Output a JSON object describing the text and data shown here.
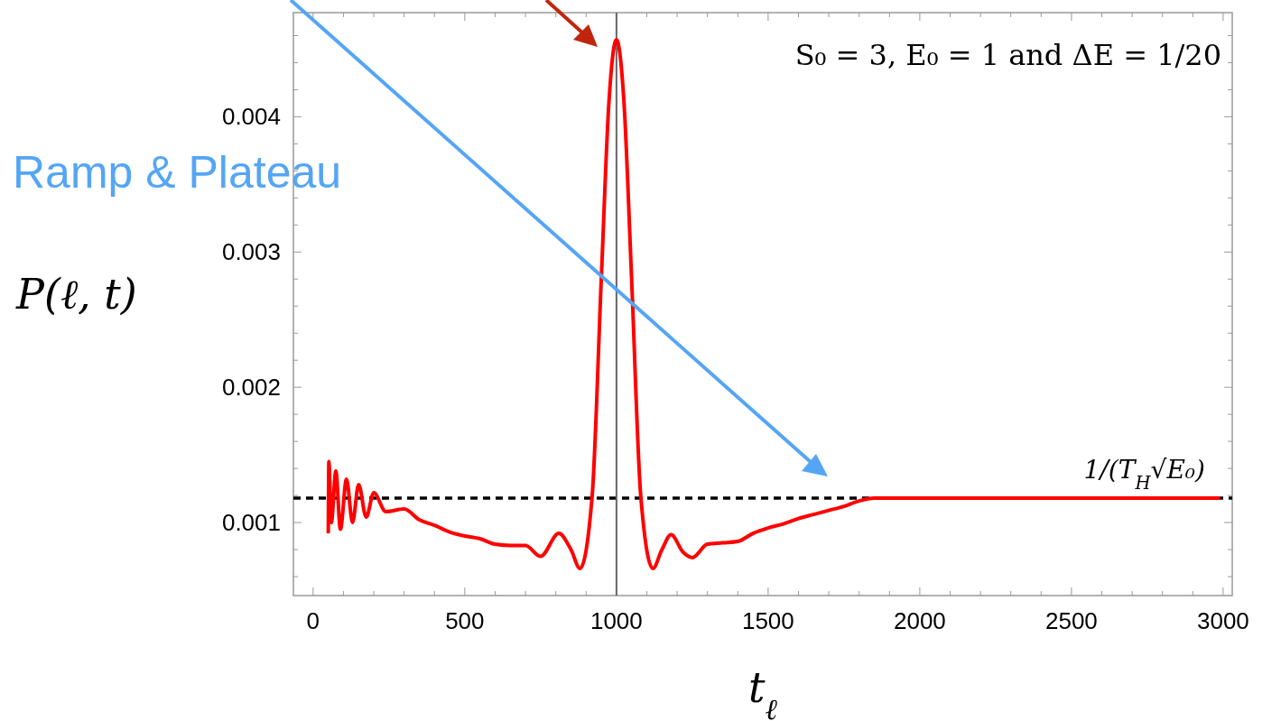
{
  "chart_data": {
    "type": "line",
    "xlabel": "t$_{ℓ}$",
    "ylabel": "P(ℓ, t)",
    "xlim": [
      -65,
      3030
    ],
    "ylim": [
      0.00046,
      0.00477
    ],
    "xticks": [
      {
        "value": 0,
        "label": "0"
      },
      {
        "value": 100,
        "label": null
      },
      {
        "value": 200,
        "label": null
      },
      {
        "value": 300,
        "label": null
      },
      {
        "value": 400,
        "label": null
      },
      {
        "value": 500,
        "label": "500"
      },
      {
        "value": 600,
        "label": null
      },
      {
        "value": 700,
        "label": null
      },
      {
        "value": 800,
        "label": null
      },
      {
        "value": 900,
        "label": null
      },
      {
        "value": 1000,
        "label": "1000"
      },
      {
        "value": 1100,
        "label": null
      },
      {
        "value": 1200,
        "label": null
      },
      {
        "value": 1300,
        "label": null
      },
      {
        "value": 1400,
        "label": null
      },
      {
        "value": 1500,
        "label": "1500"
      },
      {
        "value": 1600,
        "label": null
      },
      {
        "value": 1700,
        "label": null
      },
      {
        "value": 1800,
        "label": null
      },
      {
        "value": 1900,
        "label": null
      },
      {
        "value": 2000,
        "label": "2000"
      },
      {
        "value": 2100,
        "label": null
      },
      {
        "value": 2200,
        "label": null
      },
      {
        "value": 2300,
        "label": null
      },
      {
        "value": 2400,
        "label": null
      },
      {
        "value": 2500,
        "label": "2500"
      },
      {
        "value": 2600,
        "label": null
      },
      {
        "value": 2700,
        "label": null
      },
      {
        "value": 2800,
        "label": null
      },
      {
        "value": 2900,
        "label": null
      },
      {
        "value": 3000,
        "label": "3000"
      }
    ],
    "yticks": [
      {
        "value": 0.0006,
        "label": null
      },
      {
        "value": 0.0008,
        "label": null
      },
      {
        "value": 0.001,
        "label": "0.001"
      },
      {
        "value": 0.0012,
        "label": null
      },
      {
        "value": 0.0014,
        "label": null
      },
      {
        "value": 0.0016,
        "label": null
      },
      {
        "value": 0.0018,
        "label": null
      },
      {
        "value": 0.002,
        "label": "0.002"
      },
      {
        "value": 0.0022,
        "label": null
      },
      {
        "value": 0.0024,
        "label": null
      },
      {
        "value": 0.0026,
        "label": null
      },
      {
        "value": 0.0028,
        "label": null
      },
      {
        "value": 0.003,
        "label": "0.003"
      },
      {
        "value": 0.0032,
        "label": null
      },
      {
        "value": 0.0034,
        "label": null
      },
      {
        "value": 0.0036,
        "label": null
      },
      {
        "value": 0.0038,
        "label": null
      },
      {
        "value": 0.004,
        "label": "0.004"
      },
      {
        "value": 0.0042,
        "label": null
      },
      {
        "value": 0.0044,
        "label": null
      },
      {
        "value": 0.0046,
        "label": null
      }
    ],
    "marker": "none",
    "line_style": "solid",
    "series": [
      {
        "color": "#ff0000",
        "x": [
          50,
          52,
          60,
          75,
          90,
          110,
          130,
          150,
          175,
          200,
          240,
          300,
          350,
          400,
          450,
          500,
          550,
          600,
          650,
          700,
          750,
          810,
          850,
          880,
          920,
          950,
          975,
          1000,
          1025,
          1050,
          1080,
          1120,
          1150,
          1180,
          1220,
          1250,
          1300,
          1350,
          1400,
          1450,
          1500,
          1550,
          1600,
          1650,
          1700,
          1750,
          1800,
          1850,
          2000,
          2250,
          2500,
          2750,
          2990
        ],
        "values": [
          0.00092,
          0.00145,
          0.001,
          0.00138,
          0.00095,
          0.00132,
          0.001,
          0.00128,
          0.00104,
          0.00122,
          0.00108,
          0.0011,
          0.00102,
          0.00098,
          0.00093,
          0.0009,
          0.00088,
          0.00084,
          0.00083,
          0.00083,
          0.00075,
          0.00092,
          0.0008,
          0.00066,
          0.0012,
          0.0028,
          0.0041,
          0.00457,
          0.0041,
          0.0028,
          0.0012,
          0.00066,
          0.0008,
          0.00091,
          0.00078,
          0.00074,
          0.00084,
          0.00085,
          0.00086,
          0.00092,
          0.00096,
          0.00099,
          0.00103,
          0.00106,
          0.00109,
          0.00112,
          0.00116,
          0.00118,
          0.00118,
          0.00118,
          0.00118,
          0.00118,
          0.00118
        ]
      }
    ],
    "ref_lines": [
      {
        "axis": "y",
        "value": 0.00118,
        "label": "1/(T$_{H}$√E₀)",
        "color": "#000000",
        "line_style": "dashed"
      },
      {
        "axis": "x",
        "value": 1000,
        "label": null,
        "color": "#666666",
        "line_style": "solid"
      }
    ],
    "annotations": [
      "S₀ = 3, E₀ = 1 and ΔE = 1/20",
      "Ramp & Plateau"
    ]
  }
}
